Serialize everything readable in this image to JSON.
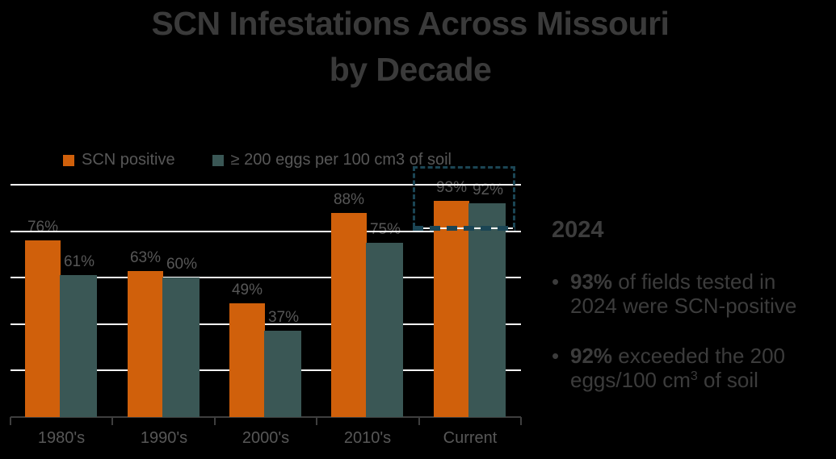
{
  "title": {
    "line1": "SCN Infestations Across Missouri",
    "line2": "by Decade"
  },
  "legend": [
    {
      "label": "SCN positive",
      "color": "#D0600B"
    },
    {
      "label": "≥ 200 eggs per 100 cm3 of soil",
      "color": "#3A5755"
    }
  ],
  "chart_data": {
    "type": "bar",
    "title": "SCN Infestations Across Missouri by Decade",
    "categories": [
      "1980's",
      "1990's",
      "2000's",
      "2010's",
      "Current"
    ],
    "series": [
      {
        "name": "SCN positive",
        "color": "#D0600B",
        "values": [
          76,
          63,
          49,
          88,
          93
        ]
      },
      {
        "name": "≥ 200 eggs per 100 cm3 of soil",
        "color": "#3A5755",
        "values": [
          61,
          60,
          37,
          75,
          92
        ]
      }
    ],
    "value_label_suffix": "%",
    "ylim": [
      0,
      100
    ],
    "gridline_values": [
      20,
      40,
      60,
      80,
      100
    ],
    "grid_on": true,
    "grid_color": "#FFFFFF",
    "axis_color": "#3E3E3E",
    "label_color": "#575757",
    "legend_position": "top-left",
    "xlabel": "",
    "ylabel": "",
    "highlight": {
      "category": "Current",
      "style": "dashed-box",
      "color": "#1B4554"
    }
  },
  "side_panel": {
    "heading": "2024",
    "bullet_char": "•",
    "bullet1": {
      "strong": "93%",
      "line1_rest": " of fields tested in",
      "line2": "2024 were SCN-positive"
    },
    "bullet2": {
      "strong": "92%",
      "line1_rest": " exceeded the 200",
      "line2_pre": "eggs/100 cm",
      "sup": "3",
      "line2_post": " of soil"
    }
  }
}
